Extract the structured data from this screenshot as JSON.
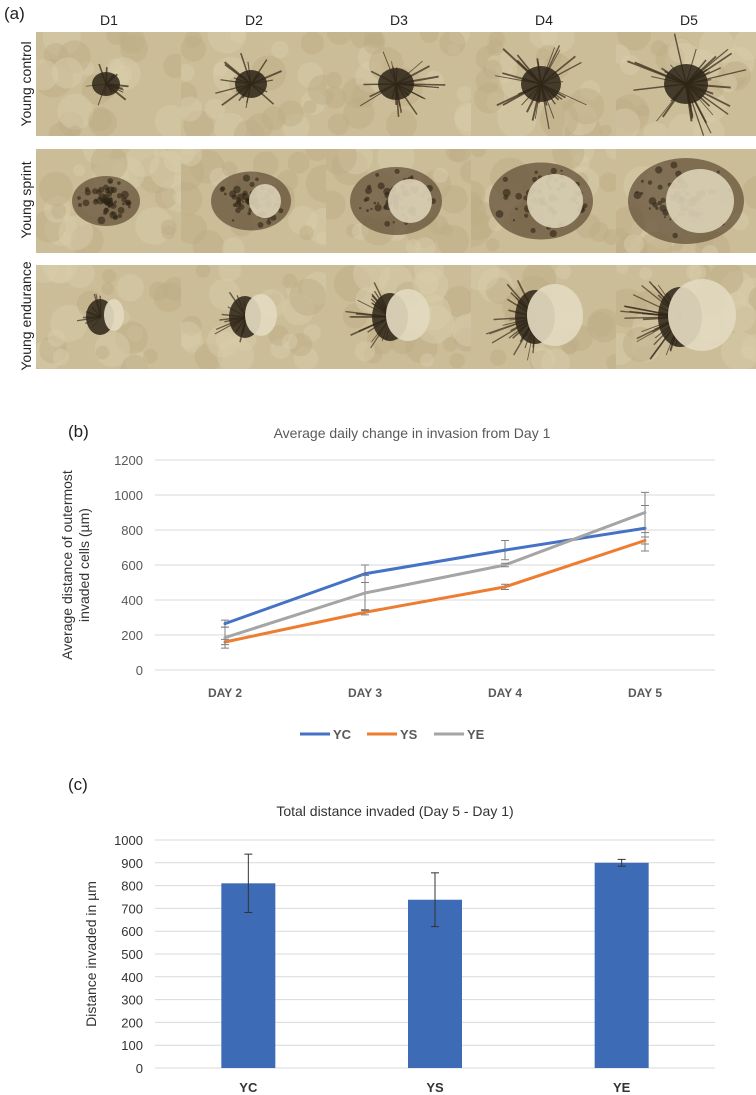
{
  "panels": {
    "a": "(a)",
    "b": "(b)",
    "c": "(c)"
  },
  "micrographs": {
    "columns": [
      "D1",
      "D2",
      "D3",
      "D4",
      "D5"
    ],
    "rows": [
      "Young control",
      "Young sprint",
      "Young endurance"
    ],
    "image_subject": "phase-contrast micrographs of spheroid invasion over 5 days"
  },
  "chart_data": [
    {
      "type": "line",
      "title": "Average daily change in invasion from Day 1",
      "xlabel": "",
      "ylabel": "Average distance of outermost invaded cells (µm)",
      "categories": [
        "DAY 2",
        "DAY 3",
        "DAY 4",
        "DAY 5"
      ],
      "ylim": [
        0,
        1200
      ],
      "yticks": [
        0,
        200,
        400,
        600,
        800,
        1000,
        1200
      ],
      "grid": true,
      "legend": "bottom",
      "series": [
        {
          "name": "YC",
          "color": "#4472c4",
          "values": [
            265,
            550,
            685,
            810
          ],
          "errors": [
            20,
            50,
            55,
            130
          ]
        },
        {
          "name": "YS",
          "color": "#ed7d31",
          "values": [
            160,
            330,
            475,
            740
          ],
          "errors": [
            15,
            15,
            15,
            20
          ]
        },
        {
          "name": "YE",
          "color": "#a5a5a5",
          "values": [
            185,
            440,
            600,
            900
          ],
          "errors": [
            60,
            100,
            10,
            115
          ]
        }
      ]
    },
    {
      "type": "bar",
      "title": "Total distance invaded (Day 5 - Day 1)",
      "xlabel": "",
      "ylabel": "Distance invaded in µm",
      "categories": [
        "YC",
        "YS",
        "YE"
      ],
      "values": [
        810,
        738,
        900
      ],
      "errors": [
        128,
        118,
        15
      ],
      "color": "#3d6bb5",
      "ylim": [
        0,
        1000
      ],
      "yticks": [
        0,
        100,
        200,
        300,
        400,
        500,
        600,
        700,
        800,
        900,
        1000
      ],
      "grid": true
    }
  ]
}
